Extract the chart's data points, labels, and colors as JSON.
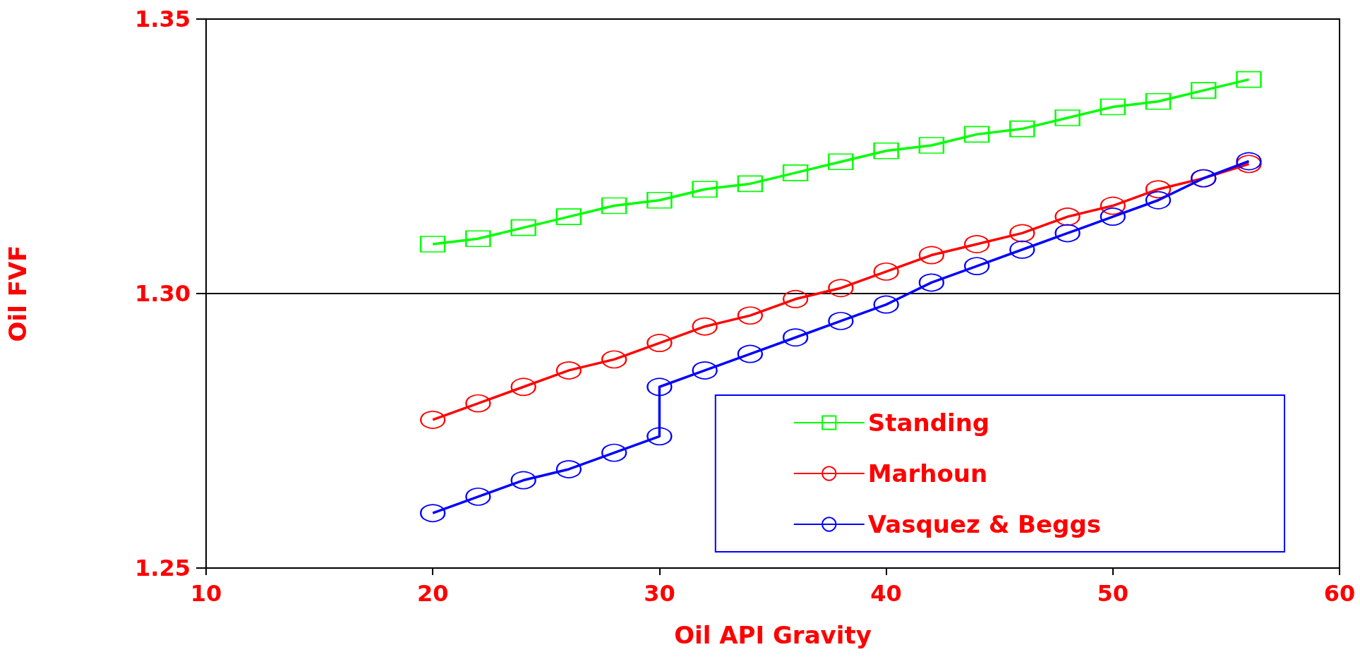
{
  "chart_data": {
    "type": "line",
    "xlabel": "Oil API Gravity",
    "ylabel": "Oil FVF",
    "x": [
      20,
      22,
      24,
      26,
      28,
      30,
      32,
      34,
      36,
      38,
      40,
      42,
      44,
      46,
      48,
      50,
      52,
      54,
      56
    ],
    "series": [
      {
        "name": "Standing",
        "color": "#00ff00",
        "marker": "square",
        "values": [
          1.309,
          1.31,
          1.312,
          1.314,
          1.316,
          1.317,
          1.319,
          1.32,
          1.322,
          1.324,
          1.326,
          1.327,
          1.329,
          1.33,
          1.332,
          1.334,
          1.335,
          1.337,
          1.339
        ]
      },
      {
        "name": "Marhoun",
        "color": "#ff0000",
        "marker": "circle",
        "values": [
          1.277,
          1.28,
          1.283,
          1.286,
          1.288,
          1.291,
          1.294,
          1.296,
          1.299,
          1.301,
          1.304,
          1.307,
          1.309,
          1.311,
          1.314,
          1.316,
          1.319,
          1.321,
          1.3236
        ]
      },
      {
        "name": "Vasquez & Beggs",
        "color": "#0000ff",
        "marker": "circle",
        "x": [
          20,
          22,
          24,
          26,
          28,
          30,
          30,
          32,
          34,
          36,
          38,
          40,
          42,
          44,
          46,
          48,
          50,
          52,
          54,
          56
        ],
        "values": [
          1.26,
          1.263,
          1.266,
          1.268,
          1.271,
          1.274,
          1.283,
          1.286,
          1.289,
          1.292,
          1.295,
          1.298,
          1.302,
          1.305,
          1.308,
          1.311,
          1.314,
          1.317,
          1.321,
          1.3241
        ]
      }
    ],
    "xlim": [
      10,
      60
    ],
    "xticks": [
      10,
      20,
      30,
      40,
      50,
      60
    ],
    "ylim": [
      1.25,
      1.35
    ],
    "yticks": [
      {
        "value": 1.25,
        "label": "1.25"
      },
      {
        "value": 1.3,
        "label": "1.30"
      },
      {
        "value": 1.35,
        "label": "1.35"
      }
    ],
    "grid": "y",
    "legend": "bottom right",
    "line_style": "solid"
  }
}
